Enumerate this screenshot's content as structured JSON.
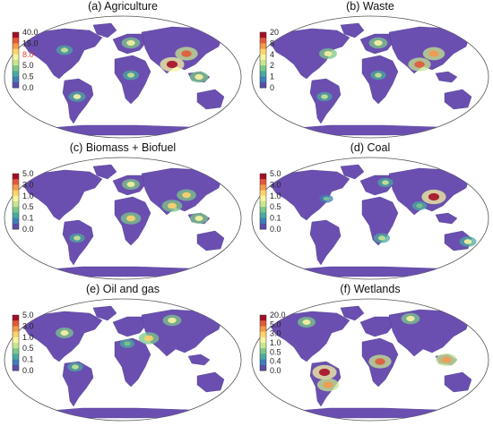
{
  "map_style": {
    "ocean": "#ffffff",
    "land_low": "#6a4fb0",
    "outline": "#555555"
  },
  "colormap": [
    "#5a4fa8",
    "#3f7fb8",
    "#4aa9a0",
    "#7cc78a",
    "#c7e68f",
    "#f7f4a0",
    "#fdd36c",
    "#f39a4b",
    "#e25a3a",
    "#a50f26"
  ],
  "panels": [
    {
      "key": "a",
      "title": "(a) Agriculture",
      "legend": {
        "labels": [
          "40.0",
          "15.0",
          "8.0",
          "5.0",
          "0.5",
          "0.0"
        ],
        "highlight_label": "8.0",
        "highlight_color": "#e23b2a"
      },
      "hotspots": [
        {
          "region": "South Asia",
          "level": 0.95
        },
        {
          "region": "East Asia",
          "level": 0.85
        },
        {
          "region": "Europe",
          "level": 0.6
        },
        {
          "region": "South America",
          "level": 0.5
        },
        {
          "region": "North America",
          "level": 0.45
        },
        {
          "region": "Africa",
          "level": 0.45
        },
        {
          "region": "Southeast Asia",
          "level": 0.6
        }
      ]
    },
    {
      "key": "b",
      "title": "(b) Waste",
      "legend": {
        "labels": [
          "20",
          "8",
          "4",
          "2",
          "1",
          "0"
        ]
      },
      "hotspots": [
        {
          "region": "South Asia",
          "level": 0.85
        },
        {
          "region": "East Asia",
          "level": 0.8
        },
        {
          "region": "Europe",
          "level": 0.6
        },
        {
          "region": "Eastern North America",
          "level": 0.55
        },
        {
          "region": "Africa",
          "level": 0.4
        },
        {
          "region": "South America",
          "level": 0.4
        }
      ]
    },
    {
      "key": "c",
      "title": "(c) Biomass + Biofuel",
      "legend": {
        "labels": [
          "5.0",
          "3.0",
          "1.0",
          "0.5",
          "0.1",
          "0.0"
        ]
      },
      "hotspots": [
        {
          "region": "Central Africa",
          "level": 0.7
        },
        {
          "region": "South Asia",
          "level": 0.7
        },
        {
          "region": "East Asia",
          "level": 0.65
        },
        {
          "region": "Europe",
          "level": 0.55
        },
        {
          "region": "Southeast Asia",
          "level": 0.55
        },
        {
          "region": "South America",
          "level": 0.4
        }
      ]
    },
    {
      "key": "d",
      "title": "(d) Coal",
      "legend": {
        "labels": [
          "5.0",
          "3.0",
          "1.0",
          "0.5",
          "0.1",
          "0.0"
        ]
      },
      "hotspots": [
        {
          "region": "East China",
          "level": 0.95
        },
        {
          "region": "Eastern Australia",
          "level": 0.5
        },
        {
          "region": "South Africa",
          "level": 0.45
        },
        {
          "region": "Eastern Europe",
          "level": 0.4
        },
        {
          "region": "India",
          "level": 0.35
        },
        {
          "region": "Eastern US",
          "level": 0.3
        }
      ]
    },
    {
      "key": "e",
      "title": "(e) Oil and gas",
      "legend": {
        "labels": [
          "5.0",
          "3.0",
          "1.0",
          "0.5",
          "0.1",
          "0.0"
        ]
      },
      "hotspots": [
        {
          "region": "Middle East",
          "level": 0.7
        },
        {
          "region": "Russia",
          "level": 0.6
        },
        {
          "region": "North America",
          "level": 0.55
        },
        {
          "region": "Northern South America",
          "level": 0.4
        },
        {
          "region": "North Africa",
          "level": 0.35
        }
      ]
    },
    {
      "key": "f",
      "title": "(f) Wetlands",
      "legend": {
        "labels": [
          "20.0",
          "5.0",
          "3.0",
          "1.0",
          "0.5",
          "0.4",
          "0.0"
        ]
      },
      "hotspots": [
        {
          "region": "Amazon",
          "level": 0.95
        },
        {
          "region": "Congo Basin",
          "level": 0.85
        },
        {
          "region": "Southeast Asia",
          "level": 0.75
        },
        {
          "region": "West Siberia",
          "level": 0.6
        },
        {
          "region": "Canada",
          "level": 0.55
        },
        {
          "region": "Pantanal",
          "level": 0.8
        }
      ]
    }
  ]
}
